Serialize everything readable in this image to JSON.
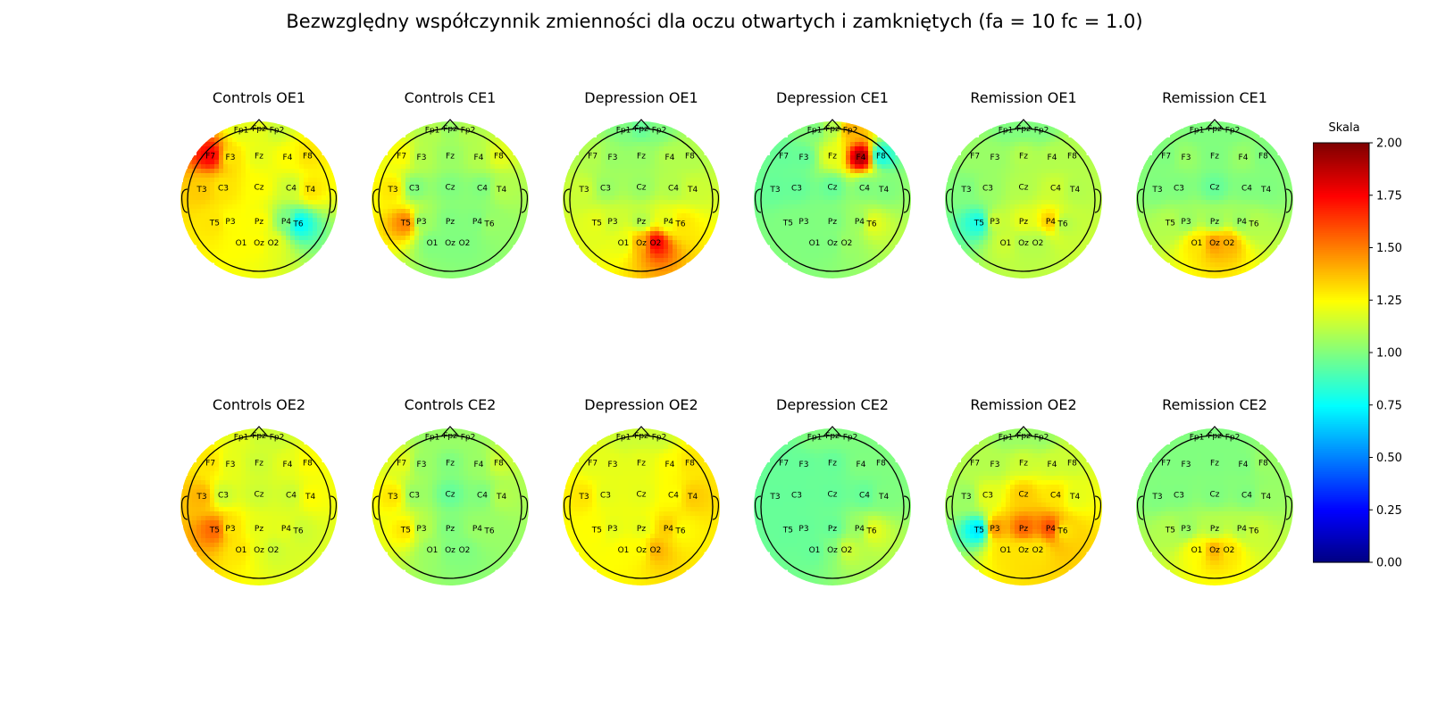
{
  "title": "Bezwzględny współczynnik zmienności dla oczu otwartych i zamkniętych (fa = 10 fc = 1.0)",
  "colorbar": {
    "label": "Skala",
    "min": 0.0,
    "max": 2.0,
    "ticks": [
      "0.00",
      "0.25",
      "0.50",
      "0.75",
      "1.00",
      "1.25",
      "1.50",
      "1.75",
      "2.00"
    ],
    "colormap": "jet"
  },
  "electrode_labels": [
    "Fp1",
    "Fpz",
    "Fp2",
    "F7",
    "F3",
    "Fz",
    "F4",
    "F8",
    "T3",
    "C3",
    "Cz",
    "C4",
    "T4",
    "T5",
    "P3",
    "Pz",
    "P4",
    "T6",
    "O1",
    "Oz",
    "O2"
  ],
  "chart_data": {
    "type": "heatmap",
    "subtype": "scalp-topographic-map",
    "value_range": [
      0.0,
      2.0
    ],
    "maps": [
      {
        "title": "Controls OE1",
        "values": {
          "Fp1": 1.2,
          "Fpz": 1.2,
          "Fp2": 1.15,
          "F7": 1.75,
          "F3": 1.3,
          "Fz": 1.2,
          "F4": 1.25,
          "F8": 1.3,
          "T3": 1.35,
          "C3": 1.3,
          "Cz": 1.25,
          "C4": 1.15,
          "T4": 1.3,
          "T5": 1.3,
          "P3": 1.25,
          "Pz": 1.25,
          "P4": 1.0,
          "T6": 0.75,
          "O1": 1.25,
          "Oz": 1.25,
          "O2": 1.2
        }
      },
      {
        "title": "Controls CE1",
        "values": {
          "Fp1": 1.1,
          "Fpz": 1.05,
          "Fp2": 1.1,
          "F7": 1.25,
          "F3": 1.1,
          "Fz": 1.05,
          "F4": 1.1,
          "F8": 1.2,
          "T3": 1.3,
          "C3": 1.0,
          "Cz": 1.0,
          "C4": 1.0,
          "T4": 1.1,
          "T5": 1.5,
          "P3": 1.05,
          "Pz": 1.0,
          "P4": 1.0,
          "T6": 1.05,
          "O1": 1.0,
          "Oz": 1.0,
          "O2": 1.0
        }
      },
      {
        "title": "Depression OE1",
        "values": {
          "Fp1": 1.0,
          "Fpz": 0.95,
          "Fp2": 1.0,
          "F7": 1.1,
          "F3": 1.05,
          "Fz": 1.05,
          "F4": 1.1,
          "F8": 1.1,
          "T3": 1.15,
          "C3": 1.05,
          "Cz": 1.05,
          "C4": 1.1,
          "T4": 1.15,
          "T5": 1.2,
          "P3": 1.15,
          "Pz": 1.1,
          "P4": 1.2,
          "T6": 1.3,
          "O1": 1.2,
          "Oz": 1.4,
          "O2": 1.75
        }
      },
      {
        "title": "Depression CE1",
        "values": {
          "Fp1": 1.0,
          "Fpz": 1.1,
          "Fp2": 1.4,
          "F7": 0.95,
          "F3": 0.95,
          "Fz": 1.2,
          "F4": 1.9,
          "F8": 0.8,
          "T3": 0.95,
          "C3": 0.95,
          "Cz": 0.95,
          "C4": 1.0,
          "T4": 1.0,
          "T5": 1.0,
          "P3": 1.0,
          "Pz": 1.0,
          "P4": 1.05,
          "T6": 1.2,
          "O1": 1.0,
          "Oz": 1.0,
          "O2": 1.05
        }
      },
      {
        "title": "Remission OE1",
        "values": {
          "Fp1": 1.0,
          "Fpz": 1.0,
          "Fp2": 1.0,
          "F7": 1.05,
          "F3": 1.05,
          "Fz": 1.1,
          "F4": 1.1,
          "F8": 1.1,
          "T3": 1.0,
          "C3": 1.05,
          "Cz": 1.1,
          "C4": 1.15,
          "T4": 1.1,
          "T5": 0.8,
          "P3": 1.15,
          "Pz": 1.2,
          "P4": 1.35,
          "T6": 1.1,
          "O1": 1.15,
          "Oz": 1.1,
          "O2": 1.1
        }
      },
      {
        "title": "Remission CE1",
        "values": {
          "Fp1": 1.0,
          "Fpz": 1.0,
          "Fp2": 1.0,
          "F7": 1.0,
          "F3": 1.05,
          "Fz": 1.0,
          "F4": 1.05,
          "F8": 1.0,
          "T3": 1.0,
          "C3": 1.0,
          "Cz": 0.95,
          "C4": 1.0,
          "T4": 1.0,
          "T5": 1.1,
          "P3": 1.05,
          "Pz": 1.05,
          "P4": 1.05,
          "T6": 1.1,
          "O1": 1.3,
          "Oz": 1.45,
          "O2": 1.4
        }
      },
      {
        "title": "Controls OE2",
        "values": {
          "Fp1": 1.2,
          "Fpz": 1.15,
          "Fp2": 1.15,
          "F7": 1.3,
          "F3": 1.2,
          "Fz": 1.15,
          "F4": 1.2,
          "F8": 1.25,
          "T3": 1.4,
          "C3": 1.15,
          "Cz": 1.15,
          "C4": 1.15,
          "T4": 1.25,
          "T5": 1.55,
          "P3": 1.3,
          "Pz": 1.2,
          "P4": 1.2,
          "T6": 1.15,
          "O1": 1.3,
          "Oz": 1.2,
          "O2": 1.15
        }
      },
      {
        "title": "Controls CE2",
        "values": {
          "Fp1": 1.05,
          "Fpz": 1.05,
          "Fp2": 1.05,
          "F7": 1.2,
          "F3": 1.05,
          "Fz": 1.0,
          "F4": 1.05,
          "F8": 1.15,
          "T3": 1.3,
          "C3": 1.05,
          "Cz": 0.95,
          "C4": 1.0,
          "T4": 1.1,
          "T5": 1.3,
          "P3": 1.1,
          "Pz": 1.0,
          "P4": 1.05,
          "T6": 1.05,
          "O1": 1.05,
          "Oz": 1.0,
          "O2": 1.0
        }
      },
      {
        "title": "Depression OE2",
        "values": {
          "Fp1": 1.15,
          "Fpz": 1.15,
          "Fp2": 1.15,
          "F7": 1.2,
          "F3": 1.2,
          "Fz": 1.2,
          "F4": 1.25,
          "F8": 1.3,
          "T3": 1.3,
          "C3": 1.2,
          "Cz": 1.2,
          "C4": 1.25,
          "T4": 1.35,
          "T5": 1.25,
          "P3": 1.2,
          "Pz": 1.2,
          "P4": 1.35,
          "T6": 1.25,
          "O1": 1.25,
          "Oz": 1.25,
          "O2": 1.4
        }
      },
      {
        "title": "Depression CE2",
        "values": {
          "Fp1": 1.0,
          "Fpz": 1.0,
          "Fp2": 1.0,
          "F7": 0.95,
          "F3": 0.95,
          "Fz": 0.95,
          "F4": 1.0,
          "F8": 1.0,
          "T3": 0.95,
          "C3": 0.95,
          "Cz": 0.95,
          "C4": 0.95,
          "T4": 1.0,
          "T5": 0.95,
          "P3": 0.95,
          "Pz": 0.95,
          "P4": 1.05,
          "T6": 1.2,
          "O1": 0.95,
          "Oz": 1.0,
          "O2": 1.15
        }
      },
      {
        "title": "Remission OE2",
        "values": {
          "Fp1": 1.05,
          "Fpz": 1.05,
          "Fp2": 1.05,
          "F7": 1.1,
          "F3": 1.1,
          "Fz": 1.15,
          "F4": 1.15,
          "F8": 1.15,
          "T3": 1.05,
          "C3": 1.2,
          "Cz": 1.35,
          "C4": 1.3,
          "T4": 1.2,
          "T5": 0.7,
          "P3": 1.45,
          "Pz": 1.55,
          "P4": 1.6,
          "T6": 1.3,
          "O1": 1.3,
          "Oz": 1.3,
          "O2": 1.3
        }
      },
      {
        "title": "Remission CE2",
        "values": {
          "Fp1": 1.0,
          "Fpz": 1.0,
          "Fp2": 1.0,
          "F7": 1.0,
          "F3": 1.0,
          "Fz": 1.0,
          "F4": 1.0,
          "F8": 1.05,
          "T3": 1.0,
          "C3": 1.0,
          "Cz": 1.0,
          "C4": 1.0,
          "T4": 1.05,
          "T5": 1.1,
          "P3": 1.05,
          "Pz": 1.1,
          "P4": 1.1,
          "T6": 1.15,
          "O1": 1.25,
          "Oz": 1.4,
          "O2": 1.3
        }
      }
    ]
  }
}
